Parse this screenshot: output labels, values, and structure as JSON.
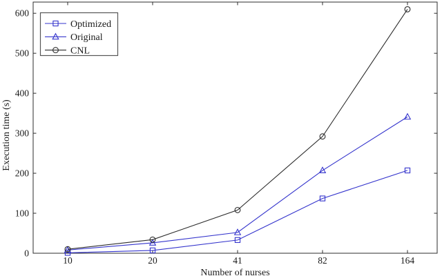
{
  "figure": {
    "background": "#ffffff",
    "axis_color": "#2b2b2b",
    "legend_border_color": "#555555"
  },
  "chart_data": {
    "type": "line",
    "title": "",
    "xlabel": "Number of nurses",
    "ylabel": "Execution time (s)",
    "x_categories": [
      "10",
      "20",
      "41",
      "82",
      "164"
    ],
    "yticks": [
      0,
      100,
      200,
      300,
      400,
      500,
      600
    ],
    "ylim": [
      0,
      628
    ],
    "grid": false,
    "legend_position": "top-left",
    "legend_entries": [
      "Optimized",
      "Original",
      "CNL"
    ],
    "series": [
      {
        "name": "Optimized",
        "marker": "square",
        "color": "#3333cc",
        "values": [
          1,
          7,
          33,
          137,
          207
        ]
      },
      {
        "name": "Original",
        "marker": "triangle",
        "color": "#3333cc",
        "values": [
          8,
          26,
          52,
          207,
          341
        ]
      },
      {
        "name": "CNL",
        "marker": "circle",
        "color": "#2b2b2b",
        "values": [
          10,
          34,
          108,
          292,
          610
        ]
      }
    ]
  }
}
